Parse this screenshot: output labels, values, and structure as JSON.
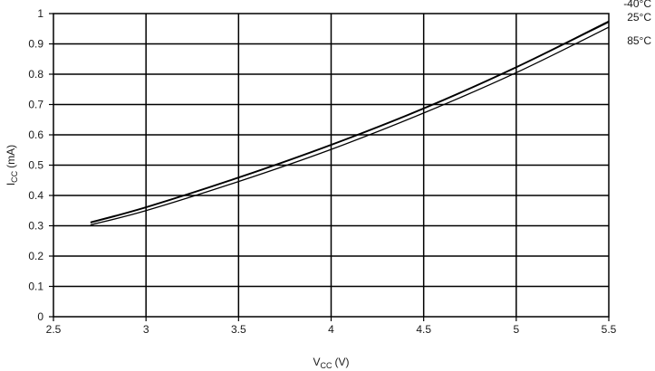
{
  "chart_data": {
    "type": "line",
    "xlabel": {
      "main": "V",
      "sub": "CC",
      "unit": "(V)"
    },
    "ylabel": {
      "main": "I",
      "sub": "CC",
      "unit": "(mA)"
    },
    "xlim": [
      2.5,
      5.5
    ],
    "ylim": [
      0,
      1
    ],
    "xticks": [
      2.5,
      3,
      3.5,
      4,
      4.5,
      5,
      5.5
    ],
    "xtick_labels": [
      "2.5",
      "3",
      "3.5",
      "4",
      "4.5",
      "5",
      "5.5"
    ],
    "yticks": [
      0,
      0.1,
      0.2,
      0.3,
      0.4,
      0.5,
      0.6,
      0.7,
      0.8,
      0.9,
      1
    ],
    "ytick_labels": [
      "0",
      "0.1",
      "0.2",
      "0.3",
      "0.4",
      "0.5",
      "0.6",
      "0.7",
      "0.8",
      "0.9",
      "1"
    ],
    "grid": true,
    "legend": "none",
    "series": [
      {
        "name": "-40°C",
        "x": [
          2.7,
          3.0,
          3.5,
          4.0,
          4.5,
          5.0,
          5.5
        ],
        "y": [
          0.312,
          0.362,
          0.46,
          0.568,
          0.688,
          0.824,
          0.975
        ]
      },
      {
        "name": "25°C",
        "x": [
          2.7,
          3.0,
          3.5,
          4.0,
          4.5,
          5.0,
          5.5
        ],
        "y": [
          0.31,
          0.36,
          0.458,
          0.566,
          0.686,
          0.822,
          0.972
        ]
      },
      {
        "name": "85°C",
        "x": [
          2.7,
          3.0,
          3.5,
          4.0,
          4.5,
          5.0,
          5.5
        ],
        "y": [
          0.303,
          0.35,
          0.446,
          0.552,
          0.672,
          0.805,
          0.955
        ]
      }
    ]
  }
}
